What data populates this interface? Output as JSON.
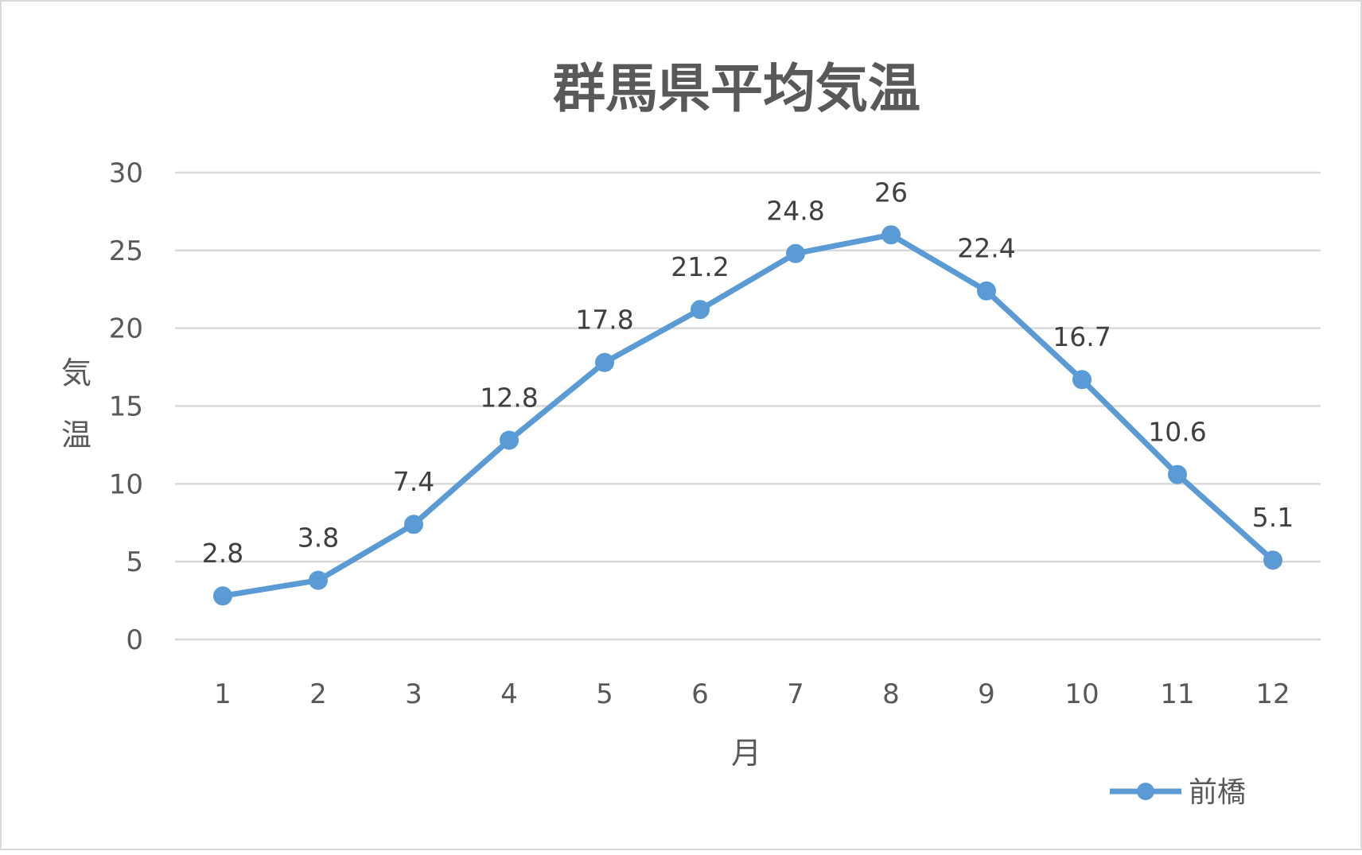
{
  "chart_data": {
    "type": "line",
    "title": "群馬県平均気温",
    "xlabel": "月",
    "ylabel": "気温",
    "categories": [
      "1",
      "2",
      "3",
      "4",
      "5",
      "6",
      "7",
      "8",
      "9",
      "10",
      "11",
      "12"
    ],
    "series": [
      {
        "name": "前橋",
        "values": [
          2.8,
          3.8,
          7.4,
          12.8,
          17.8,
          21.2,
          24.8,
          26,
          22.4,
          16.7,
          10.6,
          5.1
        ],
        "color": "#5b9bd5"
      }
    ],
    "ylim": [
      0,
      30
    ],
    "yticks": [
      0,
      5,
      10,
      15,
      20,
      25,
      30
    ],
    "grid": true,
    "legend_position": "bottom-right",
    "data_labels": true
  }
}
